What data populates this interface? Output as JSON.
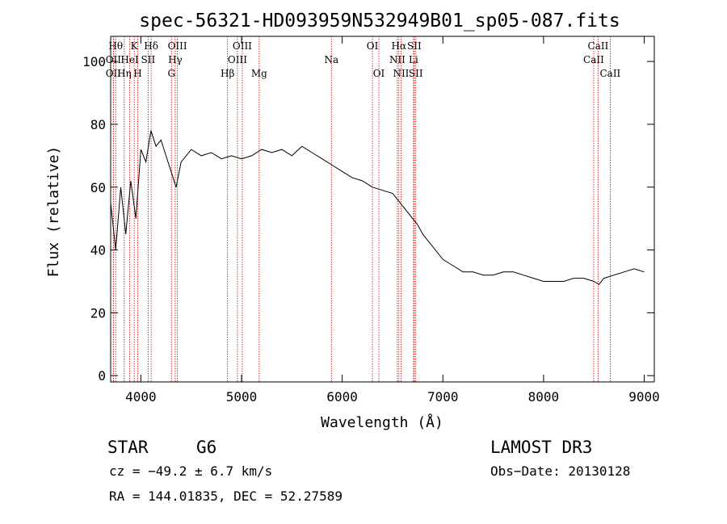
{
  "chart_data": {
    "type": "line",
    "title": "spec-56321-HD093959N532949B01_sp05-087.fits",
    "xlabel": "Wavelength (Å)",
    "ylabel": "Flux (relative)",
    "xlim": [
      3700,
      9100
    ],
    "ylim": [
      -2,
      108
    ],
    "x_ticks": [
      4000,
      5000,
      6000,
      7000,
      8000,
      9000
    ],
    "y_ticks": [
      0,
      20,
      40,
      60,
      80,
      100
    ],
    "grid": false,
    "line_color": "#000000",
    "marker_color": "#cc0000",
    "spectrum": {
      "x": [
        3700,
        3750,
        3800,
        3850,
        3900,
        3950,
        4000,
        4050,
        4100,
        4150,
        4200,
        4250,
        4300,
        4350,
        4400,
        4450,
        4500,
        4600,
        4700,
        4800,
        4900,
        5000,
        5100,
        5200,
        5300,
        5400,
        5500,
        5600,
        5700,
        5800,
        5900,
        6000,
        6100,
        6200,
        6300,
        6400,
        6500,
        6550,
        6600,
        6650,
        6700,
        6750,
        6800,
        6900,
        7000,
        7100,
        7200,
        7300,
        7400,
        7500,
        7600,
        7700,
        7800,
        7900,
        8000,
        8100,
        8200,
        8300,
        8400,
        8500,
        8550,
        8600,
        8700,
        8800,
        8900,
        9000
      ],
      "y": [
        55,
        40,
        60,
        45,
        62,
        50,
        72,
        68,
        78,
        73,
        75,
        70,
        65,
        60,
        68,
        70,
        72,
        70,
        71,
        69,
        70,
        69,
        70,
        72,
        71,
        72,
        70,
        73,
        71,
        69,
        67,
        65,
        63,
        62,
        60,
        59,
        58,
        56,
        54,
        52,
        50,
        48,
        45,
        41,
        37,
        35,
        33,
        33,
        32,
        32,
        33,
        33,
        32,
        31,
        30,
        30,
        30,
        31,
        31,
        30,
        29,
        31,
        32,
        33,
        34,
        33
      ]
    },
    "spectral_lines": [
      {
        "name": "Hθ",
        "x": 3750,
        "row": 1
      },
      {
        "name": "OII",
        "x": 3727,
        "row": 2
      },
      {
        "name": "OII",
        "x": 3727,
        "row": 3
      },
      {
        "name": "K",
        "x": 3934,
        "row": 1
      },
      {
        "name": "HeI",
        "x": 3889,
        "row": 2
      },
      {
        "name": "Hη",
        "x": 3835,
        "row": 3
      },
      {
        "name": "Hδ",
        "x": 4102,
        "row": 1
      },
      {
        "name": "SII",
        "x": 4072,
        "row": 2
      },
      {
        "name": "H",
        "x": 3969,
        "row": 3
      },
      {
        "name": "OIII",
        "x": 4363,
        "row": 1
      },
      {
        "name": "Hγ",
        "x": 4341,
        "row": 2
      },
      {
        "name": "G",
        "x": 4304,
        "row": 3
      },
      {
        "name": "OIII",
        "x": 5007,
        "row": 1
      },
      {
        "name": "OIII",
        "x": 4959,
        "row": 2
      },
      {
        "name": "Hβ",
        "x": 4861,
        "row": 3
      },
      {
        "name": "Mg",
        "x": 5175,
        "row": 3
      },
      {
        "name": "Na",
        "x": 5893,
        "row": 2
      },
      {
        "name": "OI",
        "x": 6300,
        "row": 1
      },
      {
        "name": "OI",
        "x": 6364,
        "row": 3
      },
      {
        "name": "Hα",
        "x": 6563,
        "row": 1
      },
      {
        "name": "NII",
        "x": 6548,
        "row": 2
      },
      {
        "name": "NII",
        "x": 6584,
        "row": 3
      },
      {
        "name": "SII",
        "x": 6716,
        "row": 1
      },
      {
        "name": "Li",
        "x": 6708,
        "row": 2
      },
      {
        "name": "SII",
        "x": 6731,
        "row": 3
      },
      {
        "name": "CaII",
        "x": 8542,
        "row": 1
      },
      {
        "name": "CaII",
        "x": 8498,
        "row": 2
      },
      {
        "name": "CaII",
        "x": 8662,
        "row": 3
      }
    ]
  },
  "info": {
    "object_class": "STAR",
    "subclass": "G6",
    "survey": "LAMOST DR3",
    "cz": "cz = −49.2 ± 6.7 km/s",
    "obs_date": "Obs−Date: 20130128",
    "coords": "RA = 144.01835, DEC =  52.27589"
  }
}
